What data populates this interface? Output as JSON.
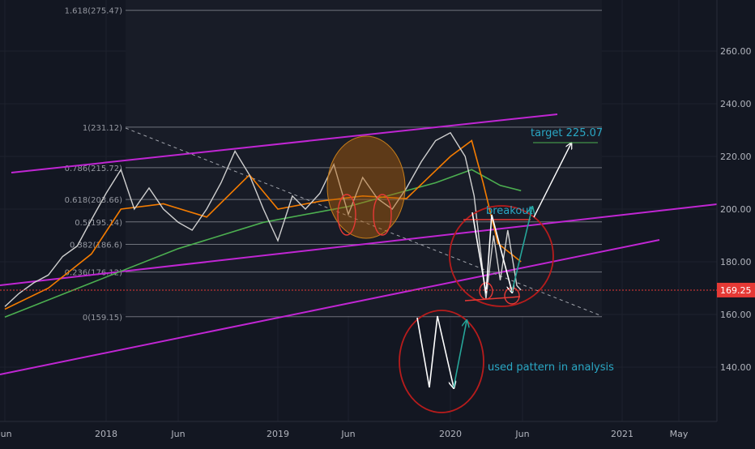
{
  "chart_data": {
    "type": "line",
    "title": "",
    "x_axis": {
      "ticks": [
        "Jun",
        "2018",
        "Jun",
        "2019",
        "Jun",
        "2020",
        "Jun",
        "2021",
        "May"
      ],
      "range": [
        "2017-06-01",
        "2021-07-01"
      ]
    },
    "y_axis": {
      "ticks": [
        140,
        160,
        180,
        200,
        220,
        240,
        260
      ],
      "tick_labels": [
        "140.00",
        "160.00",
        "180.00",
        "200.00",
        "220.00",
        "240.00",
        "260.00"
      ],
      "range": [
        118,
        275
      ]
    },
    "last_price": {
      "value": 169.25,
      "label": "169.25",
      "color": "#e53935"
    },
    "fibonacci": {
      "levels": [
        {
          "ratio": 1.618,
          "label": "1.618(275.47)",
          "price": 275.47
        },
        {
          "ratio": 1,
          "label": "1(231.12)",
          "price": 231.12
        },
        {
          "ratio": 0.786,
          "label": "0.786(215.72)",
          "price": 215.72
        },
        {
          "ratio": 0.618,
          "label": "0.618(203.66)",
          "price": 203.66
        },
        {
          "ratio": 0.5,
          "label": "0.5(195.14)",
          "price": 195.14
        },
        {
          "ratio": 0.382,
          "label": "0.382(186.6)",
          "price": 186.6
        },
        {
          "ratio": 0.236,
          "label": "0.236(176.12)",
          "price": 176.12
        },
        {
          "ratio": 0,
          "label": "0(159.15)",
          "price": 159.15
        }
      ]
    },
    "series": [
      {
        "name": "price",
        "color": "#d0d0d0",
        "points": [
          [
            "2017-06-01",
            163
          ],
          [
            "2017-07-01",
            168
          ],
          [
            "2017-08-01",
            172
          ],
          [
            "2017-09-01",
            175
          ],
          [
            "2017-10-01",
            182
          ],
          [
            "2017-11-01",
            186
          ],
          [
            "2017-12-01",
            196
          ],
          [
            "2018-01-01",
            206
          ],
          [
            "2018-02-01",
            215
          ],
          [
            "2018-03-01",
            200
          ],
          [
            "2018-04-01",
            208
          ],
          [
            "2018-05-01",
            200
          ],
          [
            "2018-06-01",
            195
          ],
          [
            "2018-07-01",
            192
          ],
          [
            "2018-08-01",
            200
          ],
          [
            "2018-09-01",
            210
          ],
          [
            "2018-10-01",
            222
          ],
          [
            "2018-11-01",
            213
          ],
          [
            "2018-12-01",
            200
          ],
          [
            "2019-01-01",
            188
          ],
          [
            "2019-02-01",
            205
          ],
          [
            "2019-03-01",
            200
          ],
          [
            "2019-04-01",
            206
          ],
          [
            "2019-05-01",
            217
          ],
          [
            "2019-06-01",
            198
          ],
          [
            "2019-07-01",
            212
          ],
          [
            "2019-08-01",
            204
          ],
          [
            "2019-09-01",
            200
          ],
          [
            "2019-10-01",
            208
          ],
          [
            "2019-11-01",
            218
          ],
          [
            "2019-12-01",
            226
          ],
          [
            "2020-01-01",
            229
          ],
          [
            "2020-02-01",
            220
          ],
          [
            "2020-02-20",
            205
          ],
          [
            "2020-03-16",
            166
          ],
          [
            "2020-04-01",
            190
          ],
          [
            "2020-04-15",
            173
          ],
          [
            "2020-05-01",
            192
          ],
          [
            "2020-05-20",
            171
          ],
          [
            "2020-05-29",
            169.25
          ]
        ]
      },
      {
        "name": "ma-short",
        "color": "#f57c00",
        "points": [
          [
            "2017-06-01",
            162
          ],
          [
            "2017-09-01",
            170
          ],
          [
            "2017-12-01",
            183
          ],
          [
            "2018-02-01",
            200
          ],
          [
            "2018-05-01",
            202
          ],
          [
            "2018-08-01",
            197
          ],
          [
            "2018-11-01",
            213
          ],
          [
            "2019-01-01",
            200
          ],
          [
            "2019-04-01",
            203
          ],
          [
            "2019-07-01",
            205
          ],
          [
            "2019-10-01",
            204
          ],
          [
            "2020-01-01",
            220
          ],
          [
            "2020-02-15",
            226
          ],
          [
            "2020-03-10",
            210
          ],
          [
            "2020-04-10",
            187
          ],
          [
            "2020-05-29",
            180
          ]
        ]
      },
      {
        "name": "ma-long",
        "color": "#4caf50",
        "points": [
          [
            "2017-06-01",
            159
          ],
          [
            "2017-12-01",
            172
          ],
          [
            "2018-06-01",
            185
          ],
          [
            "2018-12-01",
            195
          ],
          [
            "2019-06-01",
            201
          ],
          [
            "2019-12-01",
            210
          ],
          [
            "2020-02-15",
            215
          ],
          [
            "2020-04-15",
            209
          ],
          [
            "2020-05-29",
            207
          ]
        ]
      }
    ],
    "annotations": [
      {
        "type": "text",
        "text": "target 225.07",
        "color": "#2aa7c4"
      },
      {
        "type": "text",
        "text": "breakout",
        "color": "#2aa7c4"
      },
      {
        "type": "text",
        "text": "used pattern in analysis",
        "color": "#2aa7c4"
      }
    ]
  }
}
